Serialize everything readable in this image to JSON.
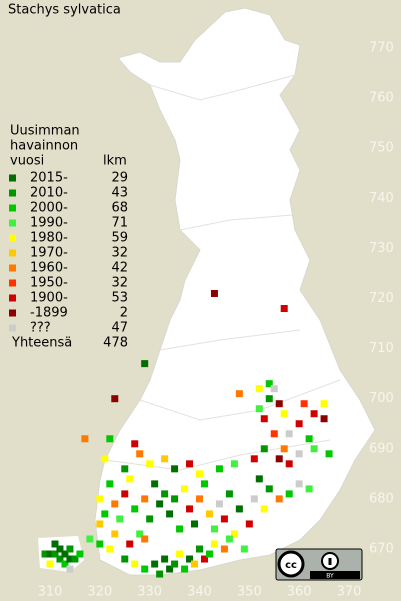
{
  "title": "Stachys sylvatica",
  "legend": {
    "header": [
      "Uusimman",
      "havainnon",
      "vuosi"
    ],
    "count_header": "lkm",
    "rows": [
      {
        "label": "2015-",
        "count": 29,
        "color": "#006e00"
      },
      {
        "label": "2010-",
        "count": 43,
        "color": "#009600"
      },
      {
        "label": "2000-",
        "count": 68,
        "color": "#00c800"
      },
      {
        "label": "1990-",
        "count": 71,
        "color": "#40f040"
      },
      {
        "label": "1980-",
        "count": 59,
        "color": "#ffff00"
      },
      {
        "label": "1970-",
        "count": 32,
        "color": "#ffc800"
      },
      {
        "label": "1960-",
        "count": 42,
        "color": "#ff7800"
      },
      {
        "label": "1950-",
        "count": 32,
        "color": "#ff3200"
      },
      {
        "label": "1900-",
        "count": 53,
        "color": "#d00000"
      },
      {
        "label": "-1899",
        "count": 2,
        "color": "#8c0000"
      },
      {
        "label": "???",
        "count": 47,
        "color": "#cccccc"
      }
    ],
    "total": {
      "label": "Yhteensä",
      "value": 478
    }
  },
  "axes": {
    "x": {
      "lim": [
        310,
        370
      ],
      "ticks": [
        310,
        320,
        330,
        340,
        350,
        360,
        370
      ]
    },
    "y": {
      "lim": [
        670,
        770
      ],
      "ticks": [
        770,
        760,
        750,
        740,
        730,
        720,
        710,
        700,
        690,
        680,
        670
      ]
    }
  },
  "license": "BY",
  "observations": [
    [
      309,
      669,
      1
    ],
    [
      310,
      669,
      0
    ],
    [
      311,
      669,
      1
    ],
    [
      312,
      670,
      0
    ],
    [
      312,
      668,
      1
    ],
    [
      313,
      669,
      0
    ],
    [
      313,
      667,
      2
    ],
    [
      314,
      668,
      0
    ],
    [
      314,
      670,
      1
    ],
    [
      315,
      668,
      1
    ],
    [
      311,
      671,
      0
    ],
    [
      316,
      669,
      2
    ],
    [
      310,
      667,
      4
    ],
    [
      314,
      666,
      10
    ],
    [
      320,
      680,
      4
    ],
    [
      321,
      677,
      2
    ],
    [
      320,
      675,
      5
    ],
    [
      322,
      683,
      2
    ],
    [
      323,
      679,
      6
    ],
    [
      324,
      676,
      3
    ],
    [
      325,
      681,
      8
    ],
    [
      326,
      684,
      4
    ],
    [
      327,
      678,
      2
    ],
    [
      328,
      673,
      3
    ],
    [
      329,
      680,
      6
    ],
    [
      330,
      676,
      1
    ],
    [
      331,
      683,
      0
    ],
    [
      332,
      679,
      0
    ],
    [
      333,
      681,
      1
    ],
    [
      334,
      677,
      0
    ],
    [
      335,
      680,
      1
    ],
    [
      336,
      674,
      2
    ],
    [
      337,
      682,
      4
    ],
    [
      338,
      678,
      8
    ],
    [
      339,
      675,
      0
    ],
    [
      340,
      680,
      6
    ],
    [
      341,
      683,
      2
    ],
    [
      342,
      677,
      5
    ],
    [
      343,
      674,
      3
    ],
    [
      344,
      679,
      10
    ],
    [
      345,
      676,
      8
    ],
    [
      346,
      681,
      1
    ],
    [
      347,
      673,
      4
    ],
    [
      348,
      678,
      0
    ],
    [
      349,
      670,
      3
    ],
    [
      350,
      675,
      8
    ],
    [
      351,
      680,
      10
    ],
    [
      352,
      684,
      0
    ],
    [
      353,
      678,
      4
    ],
    [
      354,
      682,
      1
    ],
    [
      356,
      680,
      6
    ],
    [
      358,
      681,
      2
    ],
    [
      360,
      683,
      10
    ],
    [
      362,
      682,
      3
    ],
    [
      325,
      668,
      1
    ],
    [
      327,
      667,
      4
    ],
    [
      329,
      666,
      2
    ],
    [
      331,
      667,
      0
    ],
    [
      332,
      665,
      1
    ],
    [
      333,
      668,
      0
    ],
    [
      334,
      666,
      0
    ],
    [
      335,
      667,
      1
    ],
    [
      336,
      669,
      4
    ],
    [
      337,
      666,
      2
    ],
    [
      338,
      668,
      0
    ],
    [
      339,
      667,
      5
    ],
    [
      340,
      670,
      1
    ],
    [
      341,
      668,
      8
    ],
    [
      342,
      669,
      2
    ],
    [
      343,
      671,
      4
    ],
    [
      345,
      670,
      6
    ],
    [
      346,
      672,
      3
    ],
    [
      320,
      671,
      2
    ],
    [
      322,
      670,
      4
    ],
    [
      318,
      672,
      3
    ],
    [
      323,
      673,
      5
    ],
    [
      326,
      671,
      8
    ],
    [
      329,
      672,
      6
    ],
    [
      321,
      688,
      4
    ],
    [
      325,
      686,
      1
    ],
    [
      328,
      689,
      6
    ],
    [
      330,
      687,
      4
    ],
    [
      333,
      688,
      5
    ],
    [
      335,
      686,
      0
    ],
    [
      338,
      687,
      8
    ],
    [
      340,
      685,
      4
    ],
    [
      344,
      686,
      2
    ],
    [
      347,
      687,
      3
    ],
    [
      351,
      688,
      8
    ],
    [
      353,
      690,
      1
    ],
    [
      356,
      688,
      9
    ],
    [
      357,
      690,
      6
    ],
    [
      358,
      687,
      8
    ],
    [
      360,
      689,
      10
    ],
    [
      363,
      690,
      3
    ],
    [
      366,
      689,
      2
    ],
    [
      352,
      698,
      3
    ],
    [
      353,
      696,
      8
    ],
    [
      354,
      700,
      1
    ],
    [
      355,
      693,
      7
    ],
    [
      356,
      699,
      9
    ],
    [
      357,
      697,
      4
    ],
    [
      360,
      695,
      8
    ],
    [
      361,
      699,
      7
    ],
    [
      363,
      697,
      8
    ],
    [
      365,
      699,
      4
    ],
    [
      365,
      696,
      9
    ],
    [
      358,
      693,
      10
    ],
    [
      362,
      692,
      2
    ],
    [
      327,
      691,
      8
    ],
    [
      343,
      721,
      9
    ],
    [
      357,
      718,
      8
    ],
    [
      329,
      707,
      0
    ],
    [
      323,
      700,
      9
    ],
    [
      348,
      701,
      6
    ],
    [
      352,
      702,
      4
    ],
    [
      354,
      703,
      2
    ],
    [
      355,
      702,
      10
    ],
    [
      317,
      692,
      6
    ],
    [
      322,
      692,
      2
    ]
  ]
}
